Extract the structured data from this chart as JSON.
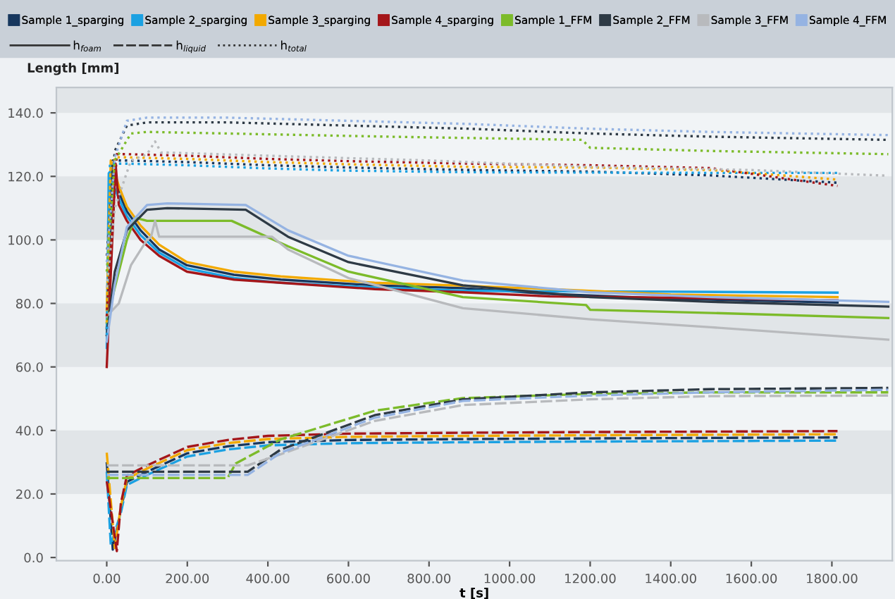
{
  "chart_data": {
    "type": "line",
    "ylabel": "Length [mm]",
    "xlabel": "t [s]",
    "xlim": [
      -125,
      1950
    ],
    "ylim": [
      -1,
      148
    ],
    "xticks": [
      {
        "value": 0,
        "label": "0.00"
      },
      {
        "value": 200,
        "label": "200.00"
      },
      {
        "value": 400,
        "label": "400.00"
      },
      {
        "value": 600,
        "label": "600.00"
      },
      {
        "value": 800,
        "label": "800.00"
      },
      {
        "value": 1000,
        "label": "1000.00"
      },
      {
        "value": 1200,
        "label": "1200.00"
      },
      {
        "value": 1400,
        "label": "1400.00"
      },
      {
        "value": 1600,
        "label": "1600.00"
      },
      {
        "value": 1800,
        "label": "1800.00"
      }
    ],
    "yticks": [
      {
        "value": 0,
        "label": "0.0"
      },
      {
        "value": 20,
        "label": "20.0"
      },
      {
        "value": 40,
        "label": "40.0"
      },
      {
        "value": 60,
        "label": "60.0"
      },
      {
        "value": 80,
        "label": "80.0"
      },
      {
        "value": 100,
        "label": "100.0"
      },
      {
        "value": 120,
        "label": "120.0"
      },
      {
        "value": 140,
        "label": "140.0"
      }
    ],
    "bands": [
      {
        "axis": "y",
        "from": 20,
        "to": 40,
        "color": "#e1e5e8"
      },
      {
        "axis": "y",
        "from": 60,
        "to": 80,
        "color": "#e1e5e8"
      },
      {
        "axis": "y",
        "from": 100,
        "to": 120,
        "color": "#e1e5e8"
      },
      {
        "axis": "y",
        "from": 140,
        "to": 148,
        "color": "#e1e5e8"
      }
    ],
    "legend": "top",
    "marker": "none",
    "annotations": [
      "h$_{foam}$",
      "h$_{liquid}$",
      "h$_{total}$"
    ],
    "series": [
      {
        "name": "Sample 1_sparging",
        "color": "#17375e",
        "line_style": "solid",
        "x": [
          0,
          15,
          30,
          50,
          84,
          130,
          199,
          316,
          432,
          665,
          884,
          1100,
          1400,
          1814
        ],
        "values": [
          72,
          123,
          115,
          109,
          103,
          97,
          92,
          89,
          87.5,
          85.7,
          84.8,
          83,
          81.5,
          80.3
        ]
      },
      {
        "name": "Sample 2_sparging",
        "color": "#1ba1e2",
        "line_style": "solid",
        "x": [
          0,
          5,
          30,
          50,
          84,
          130,
          199,
          316,
          432,
          665,
          884,
          1100,
          1400,
          1814
        ],
        "values": [
          66,
          121,
          113,
          107.5,
          101.5,
          96,
          91,
          88,
          86.5,
          85,
          84,
          83.8,
          83.7,
          83.4
        ]
      },
      {
        "name": "Sample 3_sparging",
        "color": "#f2a900",
        "line_style": "solid",
        "x": [
          0,
          10,
          30,
          50,
          84,
          130,
          199,
          316,
          432,
          665,
          884,
          1100,
          1400,
          1814
        ],
        "values": [
          78,
          125,
          117,
          110.5,
          104.5,
          98.5,
          93,
          90,
          88.5,
          86.5,
          85.6,
          84.5,
          82.8,
          82
        ]
      },
      {
        "name": "Sample 4_sparging",
        "color": "#a4161a",
        "line_style": "solid",
        "x": [
          0,
          22,
          30,
          50,
          84,
          130,
          199,
          316,
          432,
          665,
          884,
          1100,
          1400,
          1814
        ],
        "values": [
          60,
          124,
          111,
          106,
          100,
          95,
          90,
          87.5,
          86.5,
          84.5,
          83.5,
          82.2,
          81.8,
          81
        ]
      },
      {
        "name": "Sample 1_FFM",
        "color": "#7cbb2a",
        "line_style": "solid",
        "x": [
          0,
          20,
          50,
          70,
          100,
          310,
          450,
          600,
          884,
          1190,
          1200,
          1500,
          1940
        ],
        "values": [
          74,
          85,
          100,
          107,
          106,
          106,
          98,
          90,
          82,
          79.5,
          78,
          77,
          75.4
        ]
      },
      {
        "name": "Sample 2_FFM",
        "color": "#2e3a45",
        "line_style": "solid",
        "x": [
          0,
          20,
          50,
          100,
          150,
          345,
          450,
          600,
          884,
          1200,
          1500,
          1940
        ],
        "values": [
          70,
          90,
          103,
          109.5,
          110,
          109.5,
          101,
          93,
          85.7,
          82,
          80.5,
          79
        ]
      },
      {
        "name": "Sample 3_FFM",
        "color": "#b8babd",
        "line_style": "solid",
        "x": [
          0,
          30,
          60,
          100,
          110,
          120,
          130,
          150,
          410,
          450,
          600,
          884,
          1200,
          1500,
          1940
        ],
        "values": [
          76,
          80,
          92,
          100,
          101,
          106,
          101,
          101,
          101,
          97,
          88,
          78.5,
          75,
          72.5,
          68.6
        ]
      },
      {
        "name": "Sample 4_FFM",
        "color": "#95b3e2",
        "line_style": "solid",
        "x": [
          0,
          20,
          50,
          100,
          150,
          345,
          450,
          600,
          884,
          1200,
          1500,
          1940
        ],
        "values": [
          68,
          86,
          104,
          111,
          111.5,
          111,
          103,
          95,
          87.2,
          83.5,
          82,
          80.5
        ]
      },
      {
        "color": "#17375e",
        "line_style": "dashed",
        "x": [
          0,
          15,
          35,
          50,
          100,
          200,
          300,
          400,
          600,
          900,
          1200,
          1814
        ],
        "values": [
          30,
          2.5,
          15,
          23.8,
          27,
          32.8,
          35,
          36.3,
          37,
          37.3,
          37.5,
          37.8
        ]
      },
      {
        "color": "#1ba1e2",
        "line_style": "dashed",
        "x": [
          0,
          10,
          35,
          50,
          100,
          200,
          300,
          400,
          600,
          900,
          1200,
          1814
        ],
        "values": [
          27,
          4,
          14,
          22.8,
          26,
          31.8,
          34,
          35.3,
          36,
          36.3,
          36.5,
          36.8
        ]
      },
      {
        "color": "#f2a900",
        "line_style": "dashed",
        "x": [
          0,
          20,
          35,
          50,
          100,
          200,
          300,
          400,
          600,
          900,
          1200,
          1814
        ],
        "values": [
          33,
          3,
          16,
          24.8,
          28,
          33.8,
          36,
          37.3,
          38,
          38.3,
          38.5,
          38.8
        ]
      },
      {
        "color": "#a4161a",
        "line_style": "dashed",
        "x": [
          0,
          25,
          35,
          50,
          100,
          200,
          300,
          400,
          600,
          900,
          1200,
          1814
        ],
        "values": [
          24,
          2,
          17,
          25.8,
          29,
          34.8,
          37,
          38.3,
          39,
          39.3,
          39.5,
          39.8
        ]
      },
      {
        "color": "#7cbb2a",
        "line_style": "dashed",
        "x": [
          0,
          300,
          320,
          432,
          665,
          884,
          1200,
          1500,
          1940
        ],
        "values": [
          25,
          25,
          29.6,
          37.2,
          46.2,
          50.2,
          51.5,
          52,
          52
        ]
      },
      {
        "color": "#2e3a45",
        "line_style": "dashed",
        "x": [
          0,
          350,
          432,
          665,
          884,
          1200,
          1500,
          1940
        ],
        "values": [
          27,
          27,
          34,
          44.8,
          49.8,
          52,
          53,
          53.4
        ]
      },
      {
        "color": "#b8babd",
        "line_style": "dashed",
        "x": [
          0,
          350,
          432,
          665,
          884,
          1200,
          1500,
          1940
        ],
        "values": [
          29,
          29,
          32.5,
          43,
          48,
          49.8,
          50.8,
          51
        ]
      },
      {
        "color": "#95b3e2",
        "line_style": "dashed",
        "x": [
          0,
          350,
          432,
          665,
          884,
          1200,
          1500,
          1940
        ],
        "values": [
          26,
          26,
          33,
          44,
          49.3,
          51,
          52,
          52.8
        ]
      },
      {
        "color": "#17375e",
        "line_style": "dotted",
        "x": [
          0,
          15,
          50,
          200,
          400,
          600,
          900,
          1200,
          1500,
          1814
        ],
        "values": [
          72,
          125,
          125,
          124.5,
          123.5,
          122.8,
          122,
          121.5,
          120.3,
          118
        ]
      },
      {
        "color": "#1ba1e2",
        "line_style": "dotted",
        "x": [
          0,
          8,
          50,
          200,
          400,
          600,
          900,
          1200,
          1500,
          1814
        ],
        "values": [
          70,
          124,
          124,
          123.5,
          122.5,
          121.8,
          121.3,
          121.2,
          121.1,
          121.1
        ]
      },
      {
        "color": "#f2a900",
        "line_style": "dotted",
        "x": [
          0,
          20,
          50,
          200,
          400,
          600,
          900,
          1200,
          1500,
          1814
        ],
        "values": [
          74,
          126,
          126,
          125.5,
          124.5,
          123.8,
          123,
          122.8,
          122,
          119
        ]
      },
      {
        "color": "#a4161a",
        "line_style": "dotted",
        "x": [
          0,
          25,
          50,
          200,
          400,
          600,
          900,
          1200,
          1500,
          1814
        ],
        "values": [
          76,
          127,
          127,
          126.5,
          125.5,
          124.8,
          124,
          123.5,
          122.6,
          117
        ]
      },
      {
        "color": "#7cbb2a",
        "line_style": "dotted",
        "x": [
          0,
          20,
          60,
          100,
          300,
          700,
          1180,
          1200,
          1500,
          1940
        ],
        "values": [
          90,
          125,
          133.5,
          134,
          133.5,
          132.5,
          131.5,
          129,
          128,
          127
        ]
      },
      {
        "color": "#2e3a45",
        "line_style": "dotted",
        "x": [
          0,
          20,
          50,
          100,
          300,
          600,
          900,
          1200,
          1500,
          1940
        ],
        "values": [
          95,
          128,
          136,
          137,
          137,
          136,
          135,
          133.5,
          132.5,
          131.5
        ]
      },
      {
        "color": "#b8babd",
        "line_style": "dotted",
        "x": [
          0,
          20,
          60,
          100,
          120,
          135,
          150,
          400,
          800,
          1200,
          1600,
          1940
        ],
        "values": [
          85,
          110,
          125,
          127,
          131,
          127.5,
          127.5,
          126.5,
          125,
          123,
          122,
          120.2
        ]
      },
      {
        "color": "#95b3e2",
        "line_style": "dotted",
        "x": [
          0,
          20,
          50,
          100,
          300,
          600,
          900,
          1200,
          1500,
          1940
        ],
        "values": [
          93,
          126,
          137.5,
          138.5,
          138.5,
          137.5,
          136.5,
          135,
          134,
          133
        ]
      }
    ]
  }
}
